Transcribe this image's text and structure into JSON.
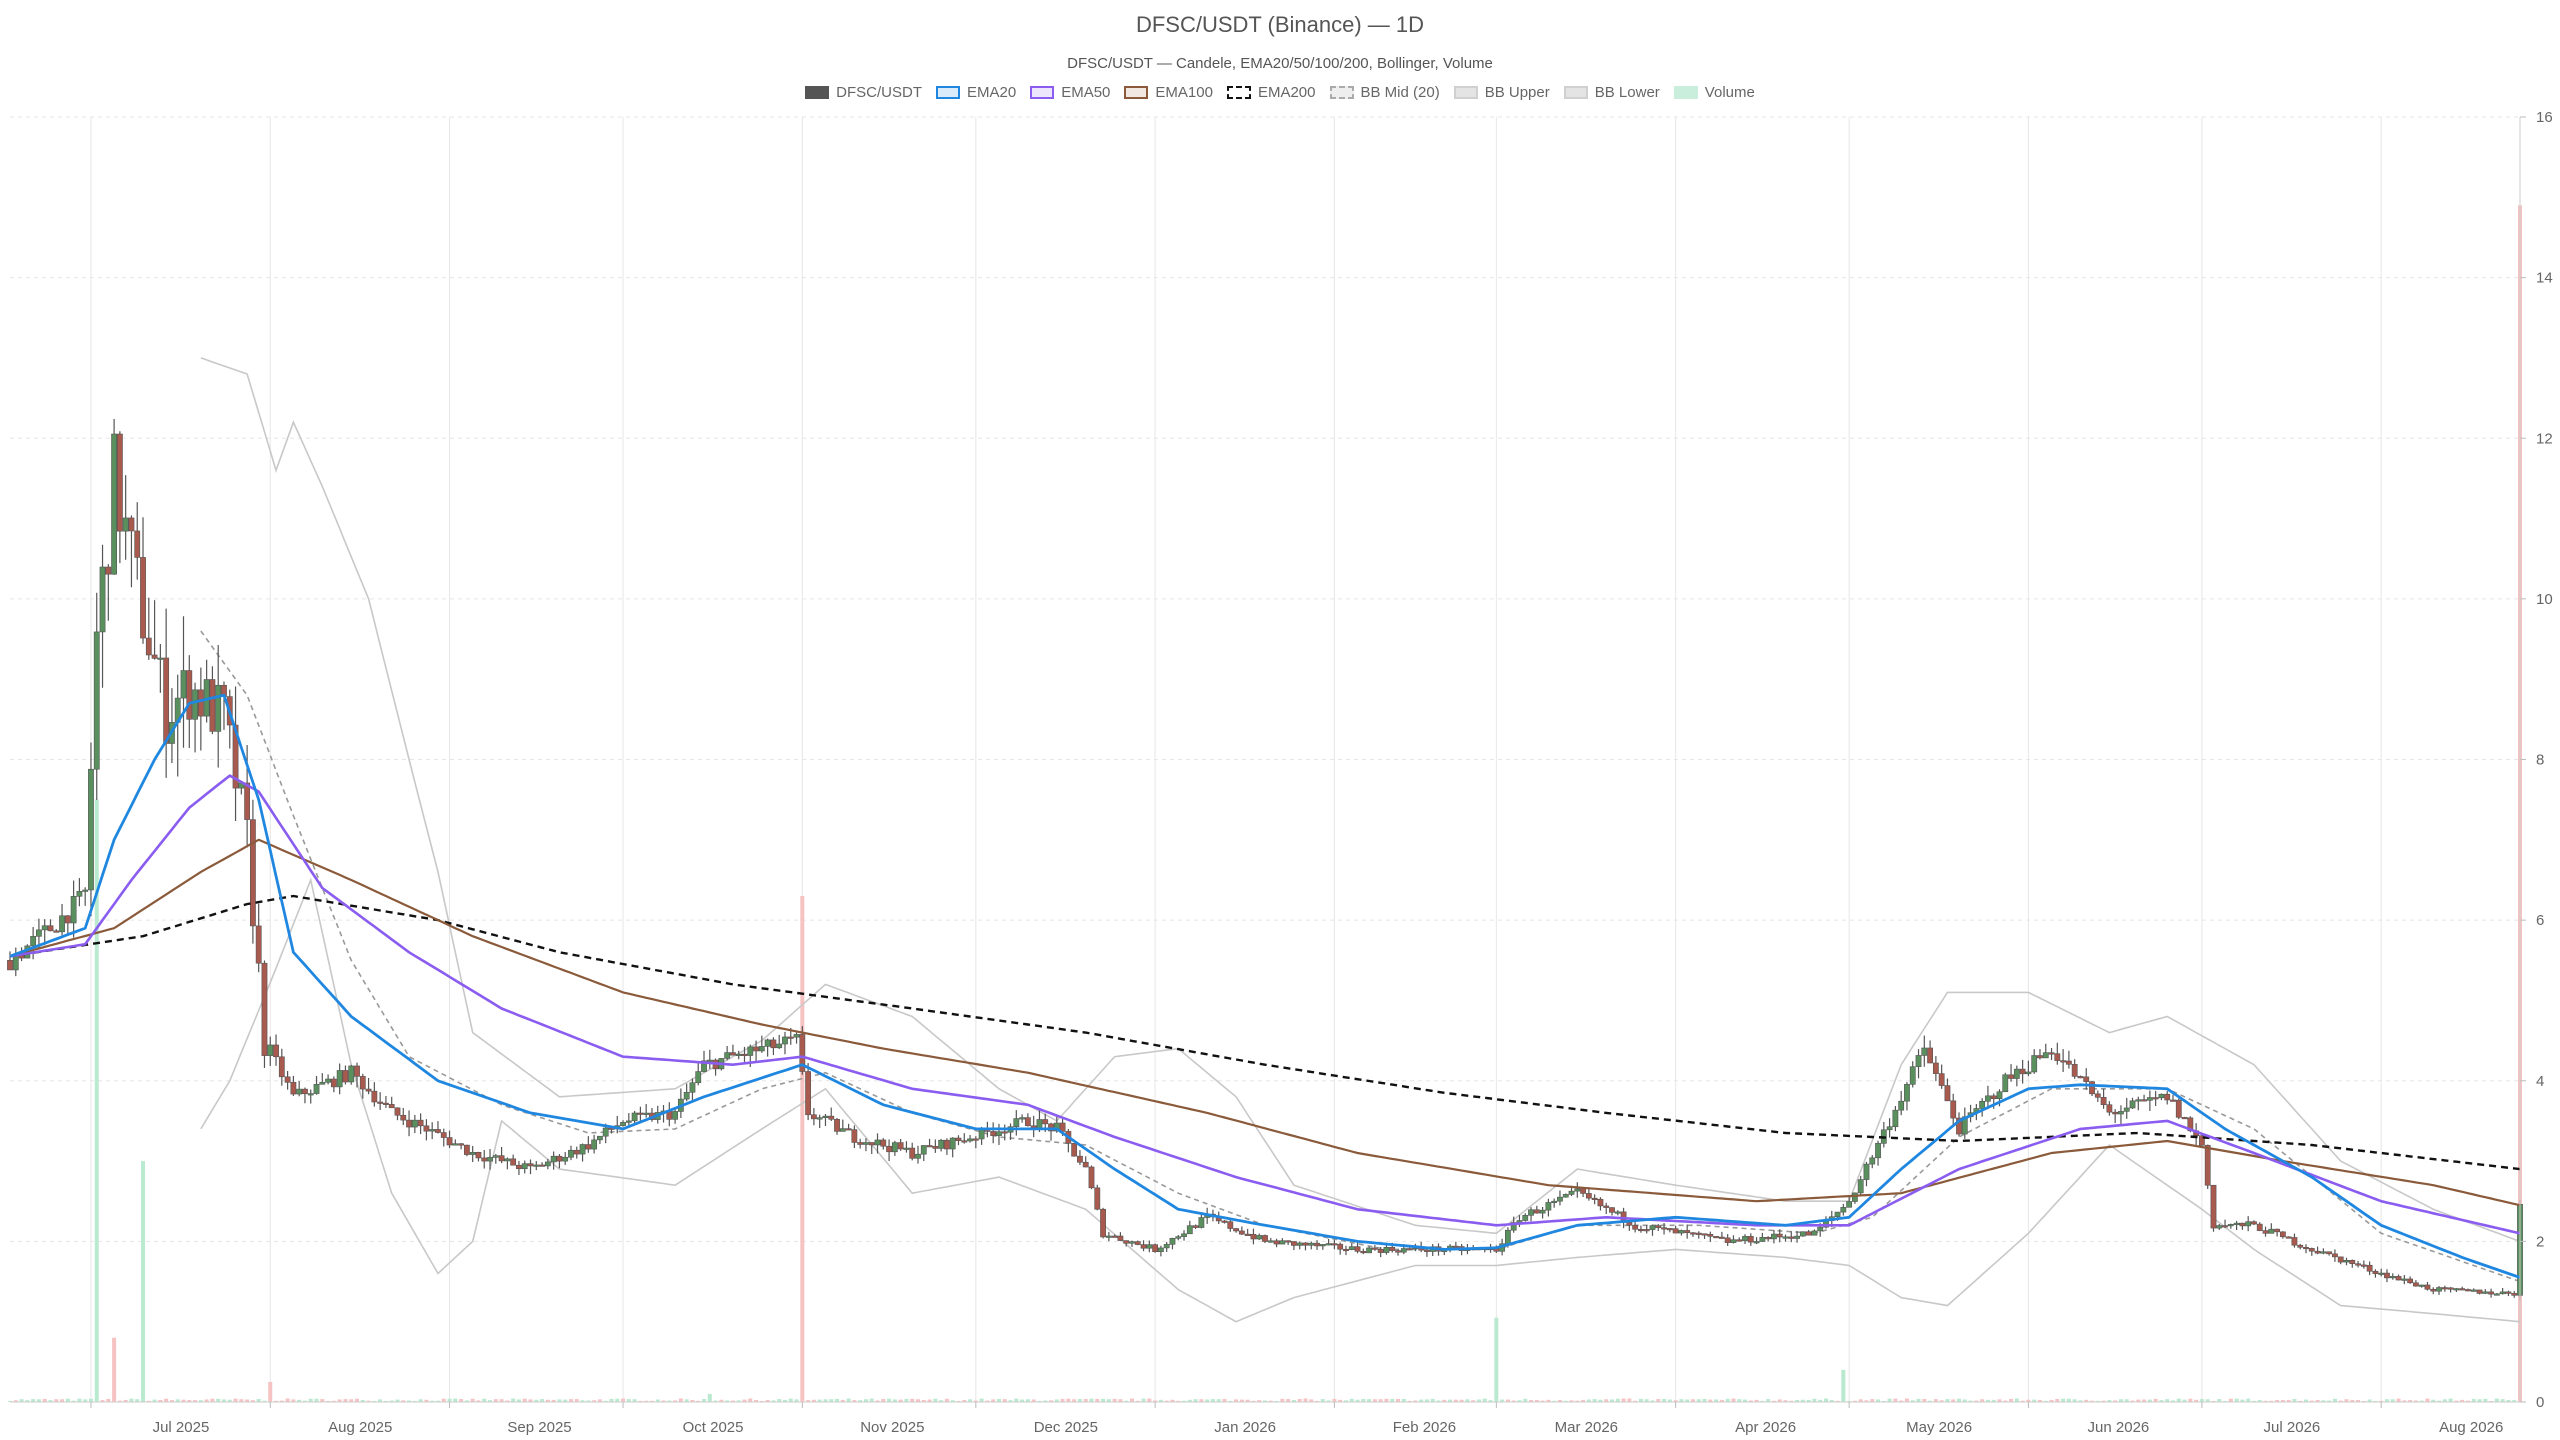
{
  "colors": {
    "up": "#5a8f5e",
    "down": "#a85a4f",
    "wick": "#555555",
    "ema20": "#1f87e0",
    "ema50": "#8a5cf0",
    "ema100": "#8a5a3a",
    "ema200": "#111111",
    "bb_mid": "#999999",
    "bb_band": "#c8c8c8",
    "vol_up": "#b9ead0",
    "vol_down": "#f6c2c2",
    "grid": "#e6e6e6"
  },
  "legend": [
    {
      "label": "DFSC/USDT",
      "fill": "#555555",
      "border": "#555555",
      "style": "solid"
    },
    {
      "label": "EMA20",
      "fill": "#dcebf9",
      "border": "#1f87e0",
      "style": "solid"
    },
    {
      "label": "EMA50",
      "fill": "#ece5fc",
      "border": "#8a5cf0",
      "style": "solid"
    },
    {
      "label": "EMA100",
      "fill": "#f1e8e1",
      "border": "#8a5a3a",
      "style": "solid"
    },
    {
      "label": "EMA200",
      "fill": "#ffffff",
      "border": "#111111",
      "style": "dashed"
    },
    {
      "label": "BB Mid (20)",
      "fill": "#eeeeee",
      "border": "#aaaaaa",
      "style": "dashed"
    },
    {
      "label": "BB Upper",
      "fill": "#e4e4e4",
      "border": "#d0d0d0",
      "style": "solid"
    },
    {
      "label": "BB Lower",
      "fill": "#e4e4e4",
      "border": "#d0d0d0",
      "style": "solid"
    },
    {
      "label": "Volume",
      "fill": "#c9efdc",
      "border": "#c9efdc",
      "style": "solid"
    }
  ],
  "chart_data": {
    "type": "candlestick",
    "title": "DFSC/USDT (Binance) — 1D",
    "subtitle": "DFSC/USDT — Candele, EMA20/50/100/200, Bollinger, Volume",
    "x_start": "2025-06-17",
    "x_end": "2026-08-25",
    "x_tick_labels": [
      "Jul 2025",
      "Aug 2025",
      "Sep 2025",
      "Oct 2025",
      "Nov 2025",
      "Dec 2025",
      "Jan 2026",
      "Feb 2026",
      "Mar 2026",
      "Apr 2026",
      "May 2026",
      "Jun 2026",
      "Jul 2026",
      "Aug 2026"
    ],
    "x_tick_dates": [
      "2025-07-01",
      "2025-08-01",
      "2025-09-01",
      "2025-10-01",
      "2025-11-01",
      "2025-12-01",
      "2026-01-01",
      "2026-02-01",
      "2026-03-01",
      "2026-04-01",
      "2026-05-01",
      "2026-06-01",
      "2026-07-01",
      "2026-08-01"
    ],
    "ylim": [
      0,
      16
    ],
    "y_ticks": [
      0,
      2,
      4,
      6,
      8,
      10,
      12,
      14,
      16
    ],
    "y_axis_position": "right",
    "grid": true,
    "legend_position": "top-center",
    "price_keypoints": [
      [
        "2025-06-17",
        5.5
      ],
      [
        "2025-06-24",
        5.9
      ],
      [
        "2025-06-30",
        6.3
      ],
      [
        "2025-07-02",
        9.5
      ],
      [
        "2025-07-05",
        11.5
      ],
      [
        "2025-07-10",
        9.8
      ],
      [
        "2025-07-14",
        8.6
      ],
      [
        "2025-07-18",
        8.9
      ],
      [
        "2025-07-24",
        8.5
      ],
      [
        "2025-07-28",
        7.0
      ],
      [
        "2025-07-31",
        4.5
      ],
      [
        "2025-08-05",
        3.8
      ],
      [
        "2025-08-15",
        4.1
      ],
      [
        "2025-08-22",
        3.6
      ],
      [
        "2025-08-28",
        3.4
      ],
      [
        "2025-09-05",
        3.1
      ],
      [
        "2025-09-15",
        2.9
      ],
      [
        "2025-09-25",
        3.2
      ],
      [
        "2025-10-01",
        3.5
      ],
      [
        "2025-10-10",
        3.6
      ],
      [
        "2025-10-15",
        4.2
      ],
      [
        "2025-10-25",
        4.4
      ],
      [
        "2025-10-31",
        4.5
      ],
      [
        "2025-11-02",
        3.6
      ],
      [
        "2025-11-10",
        3.3
      ],
      [
        "2025-11-20",
        3.1
      ],
      [
        "2025-11-30",
        3.3
      ],
      [
        "2025-12-10",
        3.5
      ],
      [
        "2025-12-15",
        3.4
      ],
      [
        "2025-12-20",
        2.9
      ],
      [
        "2025-12-23",
        2.1
      ],
      [
        "2026-01-01",
        1.9
      ],
      [
        "2026-01-10",
        2.3
      ],
      [
        "2026-01-20",
        2.0
      ],
      [
        "2026-02-05",
        1.9
      ],
      [
        "2026-02-20",
        1.9
      ],
      [
        "2026-03-01",
        1.9
      ],
      [
        "2026-03-05",
        2.3
      ],
      [
        "2026-03-15",
        2.6
      ],
      [
        "2026-03-25",
        2.2
      ],
      [
        "2026-04-10",
        2.0
      ],
      [
        "2026-04-25",
        2.1
      ],
      [
        "2026-05-01",
        2.5
      ],
      [
        "2026-05-08",
        3.5
      ],
      [
        "2026-05-14",
        4.4
      ],
      [
        "2026-05-20",
        3.4
      ],
      [
        "2026-05-28",
        4.0
      ],
      [
        "2026-06-05",
        4.4
      ],
      [
        "2026-06-15",
        3.6
      ],
      [
        "2026-06-25",
        3.8
      ],
      [
        "2026-07-01",
        3.2
      ],
      [
        "2026-07-03",
        2.2
      ],
      [
        "2026-07-10",
        2.2
      ],
      [
        "2026-07-20",
        1.9
      ],
      [
        "2026-08-01",
        1.6
      ],
      [
        "2026-08-10",
        1.4
      ],
      [
        "2026-08-24",
        1.35
      ],
      [
        "2026-08-25",
        2.5
      ]
    ],
    "ema20_keypoints": [
      [
        "2025-06-17",
        5.55
      ],
      [
        "2025-06-30",
        5.9
      ],
      [
        "2025-07-05",
        7.0
      ],
      [
        "2025-07-12",
        8.0
      ],
      [
        "2025-07-18",
        8.7
      ],
      [
        "2025-07-24",
        8.8
      ],
      [
        "2025-07-30",
        7.5
      ],
      [
        "2025-08-05",
        5.6
      ],
      [
        "2025-08-15",
        4.8
      ],
      [
        "2025-08-30",
        4.0
      ],
      [
        "2025-09-15",
        3.6
      ],
      [
        "2025-10-01",
        3.4
      ],
      [
        "2025-10-15",
        3.8
      ],
      [
        "2025-11-01",
        4.2
      ],
      [
        "2025-11-15",
        3.7
      ],
      [
        "2025-12-01",
        3.4
      ],
      [
        "2025-12-15",
        3.4
      ],
      [
        "2025-12-25",
        2.9
      ],
      [
        "2026-01-05",
        2.4
      ],
      [
        "2026-01-20",
        2.2
      ],
      [
        "2026-02-05",
        2.0
      ],
      [
        "2026-02-20",
        1.9
      ],
      [
        "2026-03-01",
        1.92
      ],
      [
        "2026-03-15",
        2.2
      ],
      [
        "2026-04-01",
        2.3
      ],
      [
        "2026-04-20",
        2.2
      ],
      [
        "2026-05-01",
        2.3
      ],
      [
        "2026-05-10",
        2.9
      ],
      [
        "2026-05-20",
        3.5
      ],
      [
        "2026-06-01",
        3.9
      ],
      [
        "2026-06-10",
        3.95
      ],
      [
        "2026-06-25",
        3.9
      ],
      [
        "2026-07-05",
        3.4
      ],
      [
        "2026-07-20",
        2.8
      ],
      [
        "2026-08-01",
        2.2
      ],
      [
        "2026-08-15",
        1.8
      ],
      [
        "2026-08-25",
        1.55
      ]
    ],
    "ema50_keypoints": [
      [
        "2025-06-17",
        5.55
      ],
      [
        "2025-06-30",
        5.7
      ],
      [
        "2025-07-08",
        6.5
      ],
      [
        "2025-07-18",
        7.4
      ],
      [
        "2025-07-25",
        7.8
      ],
      [
        "2025-07-30",
        7.6
      ],
      [
        "2025-08-10",
        6.4
      ],
      [
        "2025-08-25",
        5.6
      ],
      [
        "2025-09-10",
        4.9
      ],
      [
        "2025-10-01",
        4.3
      ],
      [
        "2025-10-20",
        4.2
      ],
      [
        "2025-11-01",
        4.3
      ],
      [
        "2025-11-20",
        3.9
      ],
      [
        "2025-12-10",
        3.7
      ],
      [
        "2025-12-25",
        3.3
      ],
      [
        "2026-01-15",
        2.8
      ],
      [
        "2026-02-05",
        2.4
      ],
      [
        "2026-03-01",
        2.2
      ],
      [
        "2026-03-20",
        2.3
      ],
      [
        "2026-04-15",
        2.2
      ],
      [
        "2026-05-01",
        2.2
      ],
      [
        "2026-05-20",
        2.9
      ],
      [
        "2026-06-10",
        3.4
      ],
      [
        "2026-06-25",
        3.5
      ],
      [
        "2026-07-10",
        3.1
      ],
      [
        "2026-08-01",
        2.5
      ],
      [
        "2026-08-25",
        2.1
      ]
    ],
    "ema100_keypoints": [
      [
        "2025-06-17",
        5.55
      ],
      [
        "2025-07-05",
        5.9
      ],
      [
        "2025-07-20",
        6.6
      ],
      [
        "2025-07-30",
        7.0
      ],
      [
        "2025-08-15",
        6.5
      ],
      [
        "2025-09-05",
        5.8
      ],
      [
        "2025-10-01",
        5.1
      ],
      [
        "2025-10-25",
        4.7
      ],
      [
        "2025-11-15",
        4.4
      ],
      [
        "2025-12-10",
        4.1
      ],
      [
        "2026-01-10",
        3.6
      ],
      [
        "2026-02-05",
        3.1
      ],
      [
        "2026-03-10",
        2.7
      ],
      [
        "2026-04-15",
        2.5
      ],
      [
        "2026-05-10",
        2.6
      ],
      [
        "2026-06-05",
        3.1
      ],
      [
        "2026-06-25",
        3.25
      ],
      [
        "2026-07-15",
        3.0
      ],
      [
        "2026-08-10",
        2.7
      ],
      [
        "2026-08-25",
        2.45
      ]
    ],
    "ema200_keypoints": [
      [
        "2025-06-17",
        5.55
      ],
      [
        "2025-07-10",
        5.8
      ],
      [
        "2025-07-28",
        6.2
      ],
      [
        "2025-08-05",
        6.3
      ],
      [
        "2025-08-30",
        6.0
      ],
      [
        "2025-09-20",
        5.6
      ],
      [
        "2025-10-20",
        5.2
      ],
      [
        "2025-11-20",
        4.9
      ],
      [
        "2025-12-20",
        4.6
      ],
      [
        "2026-01-20",
        4.2
      ],
      [
        "2026-02-20",
        3.85
      ],
      [
        "2026-03-20",
        3.6
      ],
      [
        "2026-04-20",
        3.35
      ],
      [
        "2026-05-20",
        3.25
      ],
      [
        "2026-06-20",
        3.35
      ],
      [
        "2026-07-20",
        3.2
      ],
      [
        "2026-08-25",
        2.9
      ]
    ],
    "bb_upper_keypoints": [
      [
        "2025-07-20",
        13.0
      ],
      [
        "2025-07-28",
        12.8
      ],
      [
        "2025-08-02",
        11.6
      ],
      [
        "2025-08-05",
        12.2
      ],
      [
        "2025-08-10",
        11.4
      ],
      [
        "2025-08-18",
        10.0
      ],
      [
        "2025-08-25",
        8.0
      ],
      [
        "2025-08-30",
        6.6
      ],
      [
        "2025-09-05",
        4.6
      ],
      [
        "2025-09-20",
        3.8
      ],
      [
        "2025-10-10",
        3.9
      ],
      [
        "2025-10-25",
        4.5
      ],
      [
        "2025-11-05",
        5.2
      ],
      [
        "2025-11-20",
        4.8
      ],
      [
        "2025-12-05",
        3.9
      ],
      [
        "2025-12-15",
        3.5
      ],
      [
        "2025-12-25",
        4.3
      ],
      [
        "2026-01-05",
        4.4
      ],
      [
        "2026-01-15",
        3.8
      ],
      [
        "2026-01-25",
        2.7
      ],
      [
        "2026-02-15",
        2.2
      ],
      [
        "2026-03-01",
        2.1
      ],
      [
        "2026-03-15",
        2.9
      ],
      [
        "2026-04-01",
        2.7
      ],
      [
        "2026-04-20",
        2.5
      ],
      [
        "2026-05-01",
        2.5
      ],
      [
        "2026-05-10",
        4.2
      ],
      [
        "2026-05-18",
        5.1
      ],
      [
        "2026-06-01",
        5.1
      ],
      [
        "2026-06-15",
        4.6
      ],
      [
        "2026-06-25",
        4.8
      ],
      [
        "2026-07-10",
        4.2
      ],
      [
        "2026-07-25",
        3.0
      ],
      [
        "2026-08-10",
        2.4
      ],
      [
        "2026-08-25",
        2.0
      ]
    ],
    "bb_lower_keypoints": [
      [
        "2025-07-20",
        3.4
      ],
      [
        "2025-07-25",
        4.0
      ],
      [
        "2025-08-02",
        5.4
      ],
      [
        "2025-08-08",
        6.5
      ],
      [
        "2025-08-15",
        4.2
      ],
      [
        "2025-08-22",
        2.6
      ],
      [
        "2025-08-30",
        1.6
      ],
      [
        "2025-09-05",
        2.0
      ],
      [
        "2025-09-10",
        3.5
      ],
      [
        "2025-09-20",
        2.9
      ],
      [
        "2025-10-10",
        2.7
      ],
      [
        "2025-10-25",
        3.4
      ],
      [
        "2025-11-05",
        3.9
      ],
      [
        "2025-11-20",
        2.6
      ],
      [
        "2025-12-05",
        2.8
      ],
      [
        "2025-12-20",
        2.4
      ],
      [
        "2026-01-05",
        1.4
      ],
      [
        "2026-01-15",
        1.0
      ],
      [
        "2026-01-25",
        1.3
      ],
      [
        "2026-02-15",
        1.7
      ],
      [
        "2026-03-01",
        1.7
      ],
      [
        "2026-03-15",
        1.8
      ],
      [
        "2026-04-01",
        1.9
      ],
      [
        "2026-04-20",
        1.8
      ],
      [
        "2026-05-01",
        1.7
      ],
      [
        "2026-05-10",
        1.3
      ],
      [
        "2026-05-18",
        1.2
      ],
      [
        "2026-06-01",
        2.1
      ],
      [
        "2026-06-15",
        3.2
      ],
      [
        "2026-07-01",
        2.4
      ],
      [
        "2026-07-10",
        1.9
      ],
      [
        "2026-07-25",
        1.2
      ],
      [
        "2026-08-10",
        1.1
      ],
      [
        "2026-08-25",
        1.0
      ]
    ],
    "bb_mid_keypoints": [
      [
        "2025-07-20",
        9.6
      ],
      [
        "2025-07-28",
        8.8
      ],
      [
        "2025-08-05",
        7.3
      ],
      [
        "2025-08-15",
        5.5
      ],
      [
        "2025-08-25",
        4.3
      ],
      [
        "2025-09-10",
        3.7
      ],
      [
        "2025-09-25",
        3.35
      ],
      [
        "2025-10-10",
        3.4
      ],
      [
        "2025-10-25",
        3.9
      ],
      [
        "2025-11-05",
        4.1
      ],
      [
        "2025-11-20",
        3.6
      ],
      [
        "2025-12-05",
        3.3
      ],
      [
        "2025-12-20",
        3.2
      ],
      [
        "2026-01-05",
        2.6
      ],
      [
        "2026-01-20",
        2.2
      ],
      [
        "2026-02-10",
        1.9
      ],
      [
        "2026-03-01",
        1.9
      ],
      [
        "2026-03-15",
        2.2
      ],
      [
        "2026-04-05",
        2.2
      ],
      [
        "2026-04-25",
        2.1
      ],
      [
        "2026-05-05",
        2.3
      ],
      [
        "2026-05-20",
        3.3
      ],
      [
        "2026-06-05",
        3.9
      ],
      [
        "2026-06-25",
        3.9
      ],
      [
        "2026-07-10",
        3.4
      ],
      [
        "2026-08-01",
        2.1
      ],
      [
        "2026-08-25",
        1.5
      ]
    ],
    "volume_spikes": [
      [
        "2025-07-02",
        7.5,
        "up"
      ],
      [
        "2025-07-05",
        0.8,
        "down"
      ],
      [
        "2025-07-10",
        3.0,
        "up"
      ],
      [
        "2025-08-01",
        0.25,
        "down"
      ],
      [
        "2025-10-16",
        0.1,
        "up"
      ],
      [
        "2025-11-01",
        6.3,
        "down"
      ],
      [
        "2026-03-01",
        1.05,
        "up"
      ],
      [
        "2026-04-30",
        0.4,
        "up"
      ],
      [
        "2026-08-25",
        14.9,
        "down"
      ]
    ]
  }
}
